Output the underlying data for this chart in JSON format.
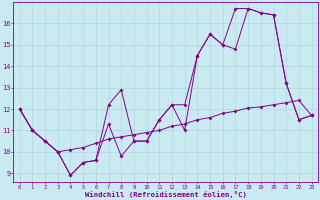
{
  "xlabel": "Windchill (Refroidissement éolien,°C)",
  "background_color": "#c8eaf0",
  "grid_color": "#b0d8e0",
  "line_color": "#880088",
  "x_ticks": [
    0,
    1,
    2,
    3,
    4,
    5,
    6,
    7,
    8,
    9,
    10,
    11,
    12,
    13,
    14,
    15,
    16,
    17,
    18,
    19,
    20,
    21,
    22,
    23
  ],
  "ylim": [
    8.6,
    17.0
  ],
  "xlim": [
    -0.5,
    23.5
  ],
  "series1": [
    12,
    11,
    10.5,
    10.0,
    8.9,
    9.5,
    9.6,
    11.3,
    9.8,
    10.5,
    10.5,
    11.5,
    12.2,
    11.0,
    14.5,
    15.5,
    15.0,
    14.8,
    16.7,
    16.5,
    16.4,
    13.2,
    11.5,
    11.7
  ],
  "series2": [
    12,
    11,
    10.5,
    10.0,
    8.9,
    9.5,
    9.6,
    12.2,
    12.9,
    10.5,
    10.5,
    11.5,
    12.2,
    12.2,
    14.5,
    15.5,
    15.0,
    16.7,
    16.7,
    16.5,
    16.4,
    13.2,
    11.5,
    11.7
  ],
  "series3": [
    12.0,
    11.0,
    10.5,
    10.0,
    10.1,
    10.2,
    10.4,
    10.6,
    10.7,
    10.8,
    10.9,
    11.0,
    11.2,
    11.3,
    11.5,
    11.6,
    11.8,
    11.9,
    12.05,
    12.1,
    12.2,
    12.3,
    12.4,
    11.7
  ],
  "yticks": [
    9,
    10,
    11,
    12,
    13,
    14,
    15,
    16
  ]
}
